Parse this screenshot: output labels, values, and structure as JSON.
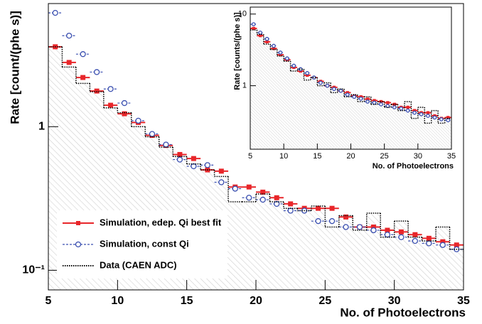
{
  "chart_data": [
    {
      "type": "histogram",
      "ylabel": "Rate [count/(phe s)]",
      "xlabel": "No. of Photoelectrons",
      "log_y": true,
      "legend": "lower left",
      "xlim": [
        5,
        35
      ],
      "ylim": [
        0.073,
        7.2
      ],
      "xticks": [
        5,
        10,
        15,
        20,
        25,
        30,
        35
      ],
      "yticks": [
        {
          "value": 0.1,
          "label": "10⁻¹"
        },
        1
      ],
      "bins": [
        5,
        6,
        7,
        8,
        9,
        10,
        11,
        12,
        13,
        14,
        15,
        16,
        17,
        18,
        19,
        20,
        21,
        22,
        23,
        24,
        25,
        26,
        27,
        28,
        29,
        30,
        31,
        32,
        33,
        34,
        35
      ],
      "series": [
        {
          "name": "Simulation, edep. Qi best fit",
          "color": "#e8262a",
          "style": "square",
          "values": [
            3.6,
            2.8,
            2.2,
            1.77,
            1.41,
            1.23,
            1.07,
            0.87,
            0.74,
            0.64,
            0.6,
            0.5,
            0.49,
            0.38,
            0.38,
            0.35,
            0.32,
            0.29,
            0.27,
            0.27,
            0.27,
            0.235,
            0.2,
            0.2,
            0.19,
            0.185,
            0.177,
            0.167,
            0.158,
            0.15
          ]
        },
        {
          "name": "Simulation, const Qi",
          "color": "#3a4fb0",
          "style": "circle",
          "values": [
            6.2,
            4.3,
            3.2,
            2.4,
            1.83,
            1.46,
            1.1,
            0.89,
            0.75,
            0.59,
            0.53,
            0.54,
            0.41,
            0.37,
            0.32,
            0.31,
            0.29,
            0.26,
            0.26,
            0.22,
            0.22,
            0.2,
            0.2,
            0.19,
            0.177,
            0.17,
            0.16,
            0.154,
            0.15,
            0.14
          ]
        },
        {
          "name": "Data (CAEN ADC)",
          "color": "#000000",
          "style": "step",
          "values": [
            3.6,
            2.6,
            2.0,
            1.75,
            1.35,
            1.25,
            1.0,
            0.85,
            0.72,
            0.62,
            0.55,
            0.5,
            0.45,
            0.3,
            0.3,
            0.34,
            0.3,
            0.27,
            0.26,
            0.28,
            0.2,
            0.24,
            0.19,
            0.25,
            0.17,
            0.22,
            0.17,
            0.16,
            0.2,
            0.14
          ]
        }
      ]
    },
    {
      "type": "histogram",
      "ylabel": "Rate [counts/(phe s)]",
      "xlabel": "No. of Photoelectrons",
      "log_y": true,
      "xlim": [
        5,
        35
      ],
      "ylim": [
        0.13,
        12.5
      ],
      "xticks": [
        5,
        10,
        15,
        20,
        25,
        30,
        35
      ],
      "yticks": [
        1,
        10
      ],
      "bins": [
        5,
        6,
        7,
        8,
        9,
        10,
        11,
        12,
        13,
        14,
        15,
        16,
        17,
        18,
        19,
        20,
        21,
        22,
        23,
        24,
        25,
        26,
        27,
        28,
        29,
        30,
        31,
        32,
        33,
        34,
        35
      ],
      "series": [
        {
          "color": "#e8262a",
          "style": "square",
          "values": [
            6.3,
            5.0,
            4.1,
            3.3,
            2.7,
            2.3,
            1.8,
            1.6,
            1.4,
            1.3,
            1.15,
            1.0,
            0.95,
            0.85,
            0.8,
            0.72,
            0.7,
            0.65,
            0.62,
            0.6,
            0.58,
            0.55,
            0.5,
            0.5,
            0.45,
            0.42,
            0.42,
            0.38,
            0.35,
            0.36
          ]
        },
        {
          "color": "#3a4fb0",
          "style": "circle",
          "values": [
            7.2,
            5.5,
            4.5,
            3.6,
            2.9,
            2.4,
            1.9,
            1.7,
            1.5,
            1.3,
            1.1,
            1.0,
            0.9,
            0.85,
            0.75,
            0.7,
            0.66,
            0.6,
            0.58,
            0.55,
            0.52,
            0.5,
            0.48,
            0.45,
            0.42,
            0.4,
            0.38,
            0.36,
            0.34,
            0.33
          ]
        },
        {
          "color": "#000000",
          "style": "step",
          "values": [
            6.0,
            5.2,
            3.8,
            3.2,
            2.6,
            2.2,
            1.6,
            1.7,
            1.2,
            1.3,
            1.0,
            1.1,
            0.8,
            0.9,
            0.7,
            0.75,
            0.6,
            0.7,
            0.55,
            0.6,
            0.5,
            0.55,
            0.45,
            0.6,
            0.35,
            0.5,
            0.3,
            0.45,
            0.3,
            0.35
          ]
        }
      ]
    }
  ]
}
